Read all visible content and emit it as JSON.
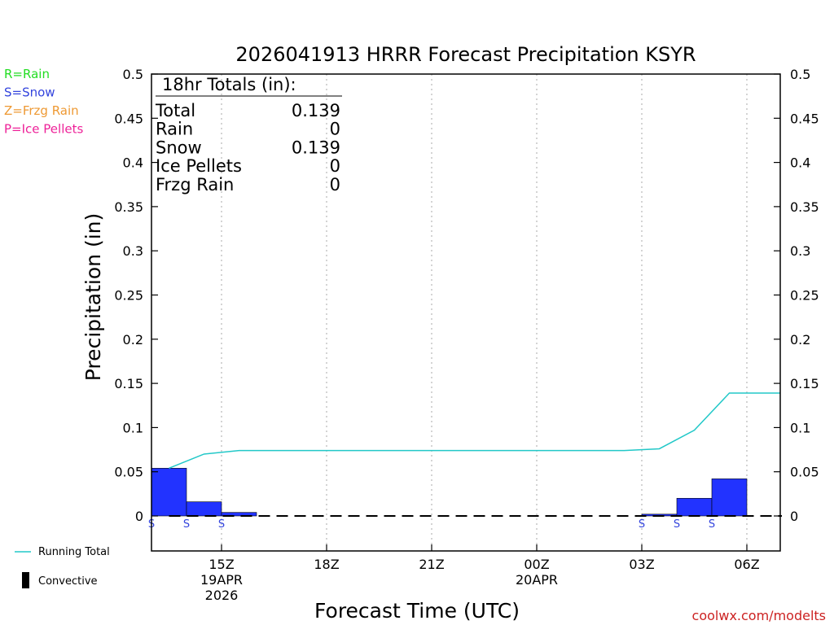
{
  "chart_data": {
    "type": "bar",
    "title": "2026041913 HRRR Forecast Precipitation KSYR",
    "xlabel": "Forecast Time (UTC)",
    "ylabel": "Precipitation (in)",
    "ylim": [
      -0.04,
      0.5
    ],
    "yticks": [
      "0.5",
      "0.45",
      "0.4",
      "0.35",
      "0.3",
      "0.25",
      "0.2",
      "0.15",
      "0.1",
      "0.05",
      "0"
    ],
    "ytick_values": [
      0.5,
      0.45,
      0.4,
      0.35,
      0.3,
      0.25,
      0.2,
      0.15,
      0.1,
      0.05,
      0
    ],
    "forecast_hours": [
      14,
      15,
      16,
      17,
      18,
      19,
      20,
      21,
      22,
      23,
      24,
      25,
      26,
      27,
      28,
      29,
      30,
      31
    ],
    "hourly_precip": [
      0.054,
      0.016,
      0.004,
      0,
      0,
      0,
      0,
      0,
      0,
      0,
      0,
      0,
      0,
      0,
      0.002,
      0.02,
      0.042,
      0
    ],
    "precip_type": [
      "S",
      "S",
      "S",
      "",
      "",
      "",
      "",
      "",
      "",
      "",
      "",
      "",
      "",
      "",
      "S",
      "S",
      "S",
      ""
    ],
    "running_total": [
      0.054,
      0.07,
      0.074,
      0.074,
      0.074,
      0.074,
      0.074,
      0.074,
      0.074,
      0.074,
      0.074,
      0.074,
      0.074,
      0.074,
      0.076,
      0.097,
      0.139,
      0.139
    ],
    "convective": [
      0,
      0,
      0,
      0,
      0,
      0,
      0,
      0,
      0,
      0,
      0,
      0,
      0,
      0,
      0,
      0,
      0,
      0
    ],
    "xticks": [
      {
        "hour": 15,
        "lines": [
          "15Z",
          "19APR",
          "2026"
        ]
      },
      {
        "hour": 18,
        "lines": [
          "18Z"
        ]
      },
      {
        "hour": 21,
        "lines": [
          "21Z"
        ]
      },
      {
        "hour": 24,
        "lines": [
          "00Z",
          "20APR"
        ]
      },
      {
        "hour": 27,
        "lines": [
          "03Z"
        ]
      },
      {
        "hour": 30,
        "lines": [
          "06Z"
        ]
      }
    ],
    "type_legend": [
      {
        "text": "R=Rain",
        "color": "#22dd22"
      },
      {
        "text": "S=Snow",
        "color": "#3344dd"
      },
      {
        "text": "Z=Frzg Rain",
        "color": "#ee9933"
      },
      {
        "text": "P=Ice Pellets",
        "color": "#ee2299"
      }
    ],
    "totals_box": {
      "heading": "18hr Totals (in):",
      "rows": [
        {
          "label": "Total",
          "value": "0.139"
        },
        {
          "label": "Rain",
          "value": "0"
        },
        {
          "label": "Snow",
          "value": "0.139"
        },
        {
          "label": "Ice Pellets",
          "value": "0"
        },
        {
          "label": "Frzg Rain",
          "value": "0"
        }
      ]
    },
    "series_legend": [
      {
        "name": "Running Total",
        "color": "#22c8c8"
      },
      {
        "name": "Convective",
        "color": "#000000"
      }
    ],
    "colors": {
      "bar": "#2233ff",
      "running_total": "#22c8c8",
      "snow_marker": "#3344dd",
      "credit": "#cc2222"
    },
    "credit": "coolwx.com/modelts"
  }
}
